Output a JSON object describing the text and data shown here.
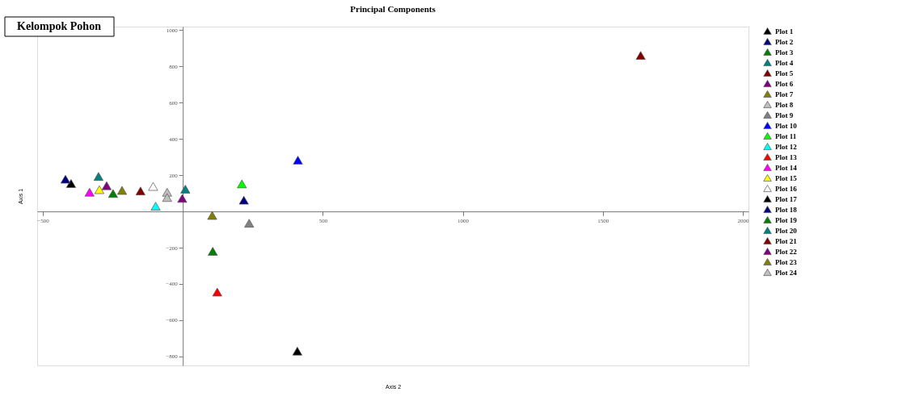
{
  "chart_data": {
    "type": "scatter",
    "title": "Principal Components",
    "xlabel": "Axis 2",
    "ylabel": "Axis 1",
    "annotations": [
      "Kelompok Pohon"
    ],
    "xlim": [
      -520,
      2020
    ],
    "ylim": [
      -850,
      1020
    ],
    "xticks": [
      -500,
      500,
      1000,
      1500,
      2000
    ],
    "yticks": [
      -800,
      -600,
      -400,
      -200,
      200,
      400,
      600,
      800,
      1000
    ],
    "grid": false,
    "legend": "right",
    "marker": "triangle",
    "series": [
      {
        "name": "Plot 1",
        "color": "#000000",
        "x": [
          409
        ],
        "values": [
          -771
        ]
      },
      {
        "name": "Plot 2",
        "color": "#000080",
        "x": [
          218
        ],
        "values": [
          62
        ]
      },
      {
        "name": "Plot 3",
        "color": "#008000",
        "x": [
          107
        ],
        "values": [
          -220
        ]
      },
      {
        "name": "Plot 4",
        "color": "#008080",
        "x": [
          -301
        ],
        "values": [
          193
        ]
      },
      {
        "name": "Plot 5",
        "color": "#800000",
        "x": [
          1635
        ],
        "values": [
          861
        ]
      },
      {
        "name": "Plot 6",
        "color": "#800080",
        "x": [
          -272
        ],
        "values": [
          142
        ]
      },
      {
        "name": "Plot 7",
        "color": "#808000",
        "x": [
          105
        ],
        "values": [
          -22
        ]
      },
      {
        "name": "Plot 8",
        "color": "#c0c0c0",
        "x": [
          -56
        ],
        "values": [
          106
        ]
      },
      {
        "name": "Plot 9",
        "color": "#808080",
        "x": [
          237
        ],
        "values": [
          -65
        ]
      },
      {
        "name": "Plot 10",
        "color": "#0000ff",
        "x": [
          411
        ],
        "values": [
          283
        ]
      },
      {
        "name": "Plot 11",
        "color": "#00ff00",
        "x": [
          211
        ],
        "values": [
          152
        ]
      },
      {
        "name": "Plot 12",
        "color": "#00ffff",
        "x": [
          -97
        ],
        "values": [
          29
        ]
      },
      {
        "name": "Plot 13",
        "color": "#ff0000",
        "x": [
          123
        ],
        "values": [
          -445
        ]
      },
      {
        "name": "Plot 14",
        "color": "#ff00ff",
        "x": [
          -333
        ],
        "values": [
          106
        ]
      },
      {
        "name": "Plot 15",
        "color": "#ffff00",
        "x": [
          -298
        ],
        "values": [
          120
        ]
      },
      {
        "name": "Plot 16",
        "color": "#ffffff",
        "x": [
          -106
        ],
        "values": [
          138
        ]
      },
      {
        "name": "Plot 17",
        "color": "#000000",
        "x": [
          -399
        ],
        "values": [
          154
        ]
      },
      {
        "name": "Plot 18",
        "color": "#000080",
        "x": [
          -419
        ],
        "values": [
          178
        ]
      },
      {
        "name": "Plot 19",
        "color": "#008000",
        "x": [
          -249
        ],
        "values": [
          99
        ]
      },
      {
        "name": "Plot 20",
        "color": "#008080",
        "x": [
          9
        ],
        "values": [
          123
        ]
      },
      {
        "name": "Plot 21",
        "color": "#800000",
        "x": [
          -151
        ],
        "values": [
          113
        ]
      },
      {
        "name": "Plot 22",
        "color": "#800080",
        "x": [
          -2
        ],
        "values": [
          72
        ]
      },
      {
        "name": "Plot 23",
        "color": "#808000",
        "x": [
          -217
        ],
        "values": [
          116
        ]
      },
      {
        "name": "Plot 24",
        "color": "#c0c0c0",
        "x": [
          -56
        ],
        "values": [
          77
        ]
      }
    ]
  }
}
